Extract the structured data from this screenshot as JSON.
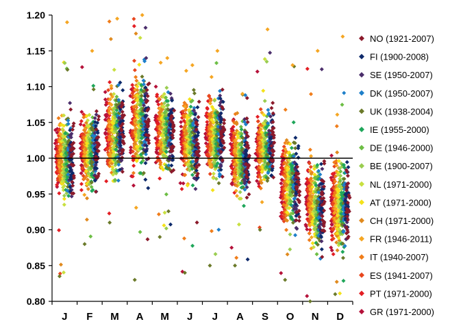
{
  "chart_data": {
    "type": "scatter",
    "title": "",
    "xlabel": "",
    "ylabel": "",
    "ylim": [
      0.8,
      1.2
    ],
    "yticks": [
      "0.80",
      "0.85",
      "0.90",
      "0.95",
      "1.00",
      "1.05",
      "1.10",
      "1.15",
      "1.20"
    ],
    "reference_line": 1.0,
    "categories": [
      "J",
      "F",
      "M",
      "A",
      "M",
      "J",
      "J",
      "A",
      "S",
      "O",
      "N",
      "D"
    ],
    "legend_position": "right",
    "series": [
      {
        "name": "NO (1921-2007)",
        "color": "#8B1A2B"
      },
      {
        "name": "FI (1900-2008)",
        "color": "#0E2A6B"
      },
      {
        "name": "SE (1950-2007)",
        "color": "#4B2E6B"
      },
      {
        "name": "DK (1950-2007)",
        "color": "#1E7FC9"
      },
      {
        "name": "UK (1938-2004)",
        "color": "#6B7A2A"
      },
      {
        "name": "IE (1955-2000)",
        "color": "#1FA65A"
      },
      {
        "name": "DE (1946-2000)",
        "color": "#6DBE45"
      },
      {
        "name": "BE (1900-2007)",
        "color": "#9ACD50"
      },
      {
        "name": "NL (1971-2000)",
        "color": "#C8E040"
      },
      {
        "name": "AT (1971-2000)",
        "color": "#F4E21A"
      },
      {
        "name": "CH (1971-2000)",
        "color": "#E08A1E"
      },
      {
        "name": "FR (1946-2011)",
        "color": "#F5A623"
      },
      {
        "name": "IT (1940-2007)",
        "color": "#F07D1A"
      },
      {
        "name": "ES (1941-2007)",
        "color": "#E8461E"
      },
      {
        "name": "PT (1971-2000)",
        "color": "#E31E24"
      },
      {
        "name": "GR (1971-2000)",
        "color": "#B5123A"
      }
    ],
    "month_ranges": [
      {
        "month": "J",
        "core": [
          0.92,
          1.08
        ],
        "min": 0.835,
        "max": 1.19
      },
      {
        "month": "F",
        "core": [
          0.93,
          1.09
        ],
        "min": 0.88,
        "max": 1.15
      },
      {
        "month": "M",
        "core": [
          0.94,
          1.13
        ],
        "min": 0.91,
        "max": 1.195
      },
      {
        "month": "A",
        "core": [
          0.95,
          1.15
        ],
        "min": 0.83,
        "max": 1.2
      },
      {
        "month": "M",
        "core": [
          0.96,
          1.11
        ],
        "min": 0.89,
        "max": 1.14
      },
      {
        "month": "J",
        "core": [
          0.95,
          1.1
        ],
        "min": 0.84,
        "max": 1.13
      },
      {
        "month": "J",
        "core": [
          0.95,
          1.11
        ],
        "min": 0.85,
        "max": 1.15
      },
      {
        "month": "A",
        "core": [
          0.92,
          1.08
        ],
        "min": 0.85,
        "max": 1.09
      },
      {
        "month": "S",
        "core": [
          0.94,
          1.09
        ],
        "min": 0.9,
        "max": 1.18
      },
      {
        "month": "O",
        "core": [
          0.88,
          1.05
        ],
        "min": 0.83,
        "max": 1.13
      },
      {
        "month": "N",
        "core": [
          0.85,
          1.02
        ],
        "min": 0.8,
        "max": 1.15
      },
      {
        "month": "D",
        "core": [
          0.84,
          1.02
        ],
        "min": 0.81,
        "max": 1.17
      }
    ]
  }
}
